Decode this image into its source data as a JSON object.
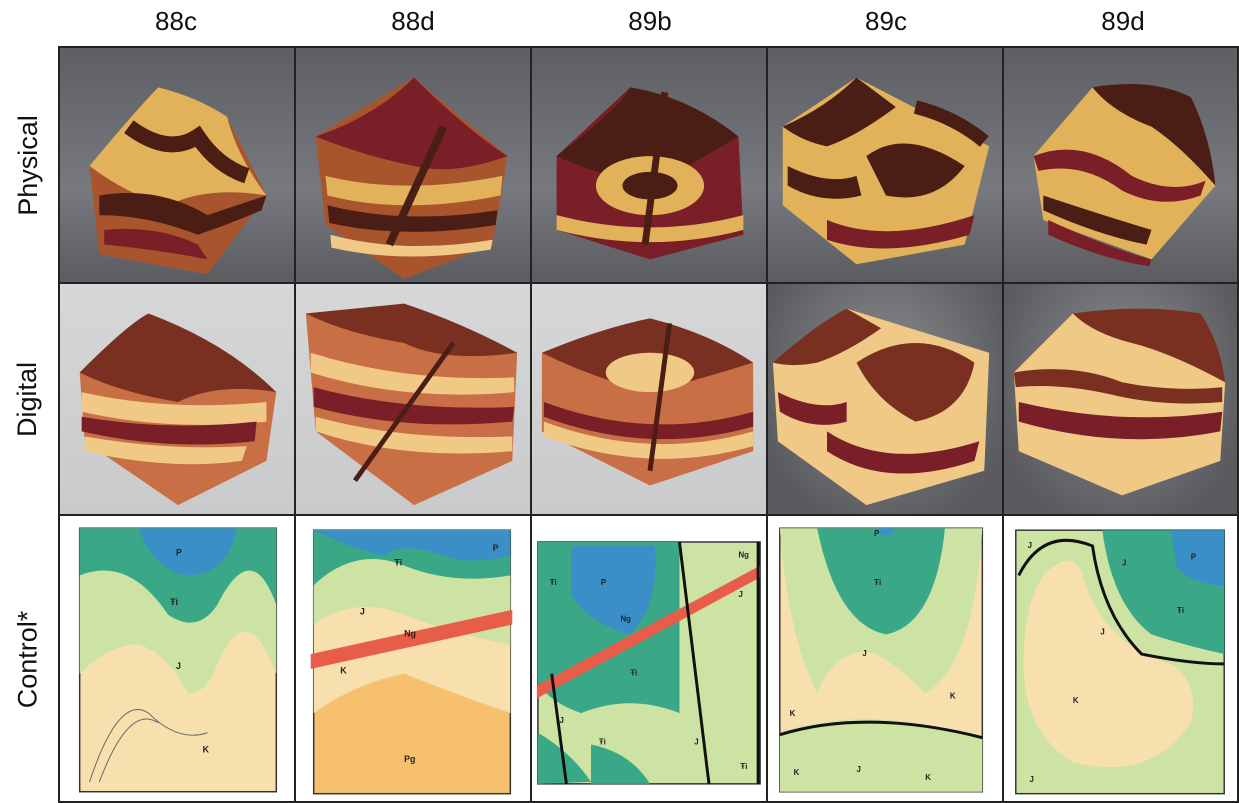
{
  "columns": [
    "88c",
    "88d",
    "89b",
    "89c",
    "89d"
  ],
  "rows": [
    "Physical",
    "Digital",
    "Control*"
  ],
  "maps": [
    {
      "labels": [
        "P",
        "Ŧi",
        "J",
        "K"
      ]
    },
    {
      "labels": [
        "P",
        "Ŧi",
        "J",
        "Ng",
        "K",
        "Pg"
      ]
    },
    {
      "labels": [
        "Ŧi",
        "P",
        "Ng",
        "Ng",
        "J",
        "Ŧi",
        "J",
        "Ŧi",
        "J",
        "Ŧi"
      ]
    },
    {
      "labels": [
        "P",
        "Ŧi",
        "J",
        "K",
        "K",
        "K",
        "J",
        "K"
      ]
    },
    {
      "labels": [
        "J",
        "J",
        "P",
        "Ŧi",
        "J",
        "K",
        "J"
      ]
    }
  ],
  "colors": {
    "wood_dark": "#4a1e14",
    "wood_red": "#7a1f28",
    "wood_light": "#e2b25a",
    "wood_pale": "#f0c987",
    "wood_brown": "#a8552e",
    "map_P": "#3a8fc7",
    "map_Tr": "#3aa886",
    "map_J": "#cde3a4",
    "map_K": "#f7dfae",
    "map_Pg": "#f6c06e",
    "map_Ng": "#e85c4a"
  }
}
